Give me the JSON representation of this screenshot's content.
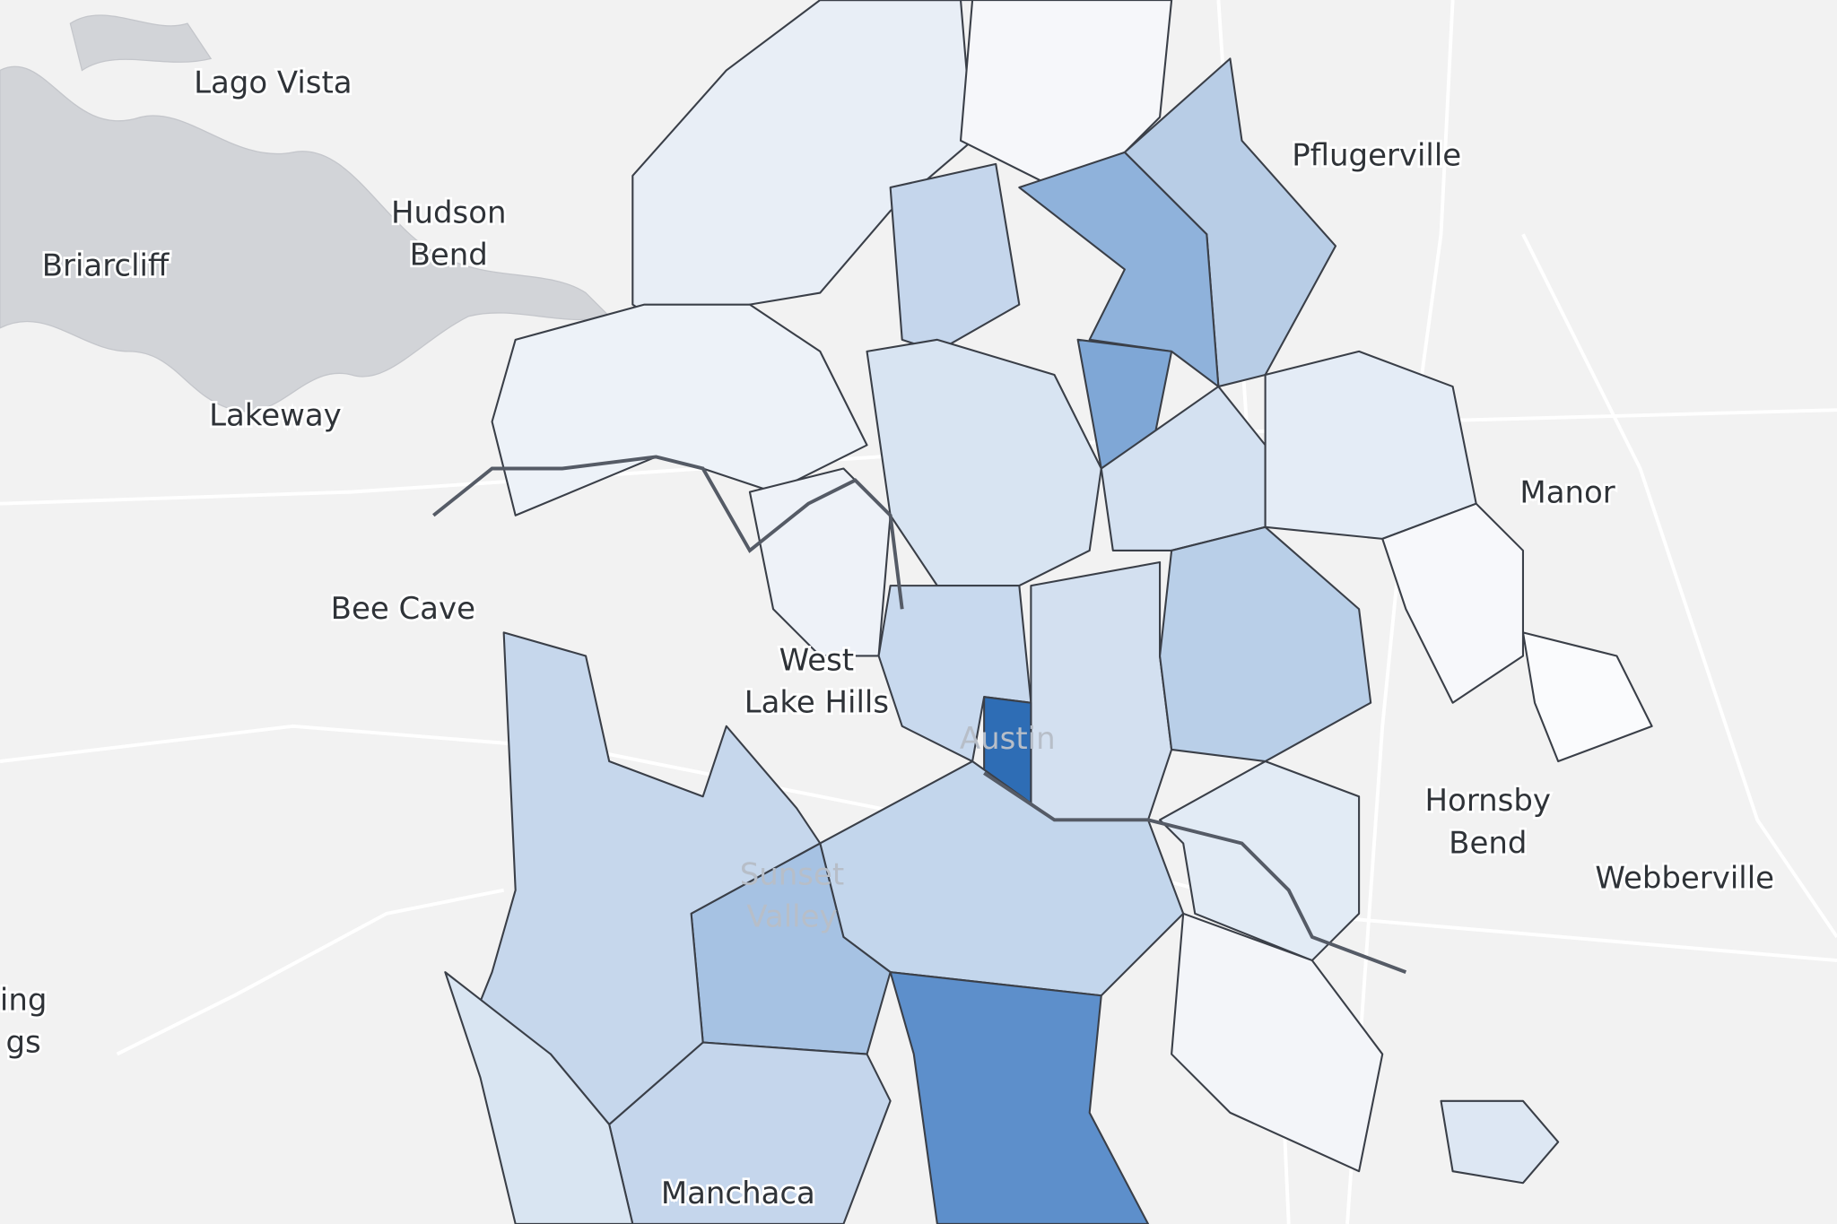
{
  "places": [
    {
      "lines": [
        "Lago Vista"
      ]
    },
    {
      "lines": [
        "Hudson",
        "Bend"
      ]
    },
    {
      "lines": [
        "Briarcliff"
      ]
    },
    {
      "lines": [
        "Lakeway"
      ]
    },
    {
      "lines": [
        "Bee Cave"
      ]
    },
    {
      "lines": [
        "West",
        "Lake Hills"
      ]
    },
    {
      "lines": [
        "Austin"
      ]
    },
    {
      "lines": [
        "Sunset",
        "Valley"
      ]
    },
    {
      "lines": [
        "Manchaca"
      ]
    },
    {
      "lines": [
        "Pflugerville"
      ]
    },
    {
      "lines": [
        "Manor"
      ]
    },
    {
      "lines": [
        "Hornsby",
        "Bend"
      ]
    },
    {
      "lines": [
        "Webberville"
      ]
    },
    {
      "lines": [
        "ing",
        "gs"
      ]
    }
  ]
}
